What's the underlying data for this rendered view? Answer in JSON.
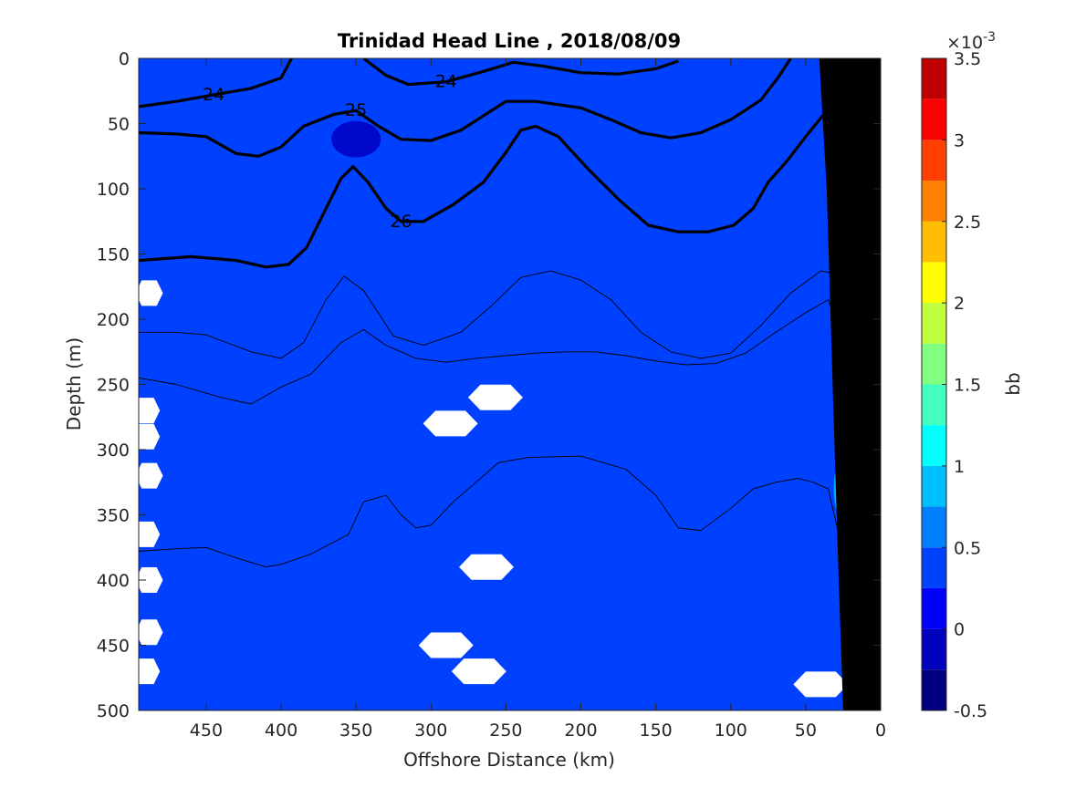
{
  "chart_data": {
    "type": "contour",
    "title": "Trinidad Head Line , 2018/08/09",
    "xlabel": "Offshore Distance (km)",
    "ylabel": "Depth (m)",
    "xlim": [
      495,
      0
    ],
    "ylim": [
      0,
      500
    ],
    "x_reversed": true,
    "y_reversed": true,
    "xticks": [
      450,
      400,
      350,
      300,
      250,
      200,
      150,
      100,
      50,
      0
    ],
    "yticks": [
      0,
      50,
      100,
      150,
      200,
      250,
      300,
      350,
      400,
      450,
      500
    ],
    "grid": false,
    "background_value": 0.25,
    "colorbar": {
      "label": "bb",
      "exponent_label": "×10",
      "exponent": "-3",
      "range": [
        -0.5,
        3.5
      ],
      "levels": [
        -0.5,
        -0.25,
        0,
        0.25,
        0.5,
        0.75,
        1,
        1.25,
        1.5,
        1.75,
        2,
        2.25,
        2.5,
        2.75,
        3,
        3.25,
        3.5
      ],
      "colors": [
        "#000080",
        "#0000BF",
        "#0000FF",
        "#0040FF",
        "#0080FF",
        "#00BFFF",
        "#00FFFF",
        "#40FFBF",
        "#80FF80",
        "#BFFF40",
        "#FFFF00",
        "#FFBF00",
        "#FF8000",
        "#FF4000",
        "#FF0000",
        "#BF0000"
      ],
      "ticks": [
        "-0.5",
        "0",
        "0.5",
        "1",
        "1.5",
        "2",
        "2.5",
        "3",
        "3.5"
      ],
      "tick_values": [
        -0.5,
        0,
        0.5,
        1,
        1.5,
        2,
        2.5,
        3,
        3.5
      ]
    },
    "density_contours": [
      {
        "label": "24",
        "bold": true,
        "points": [
          [
            495,
            37
          ],
          [
            470,
            33
          ],
          [
            445,
            28
          ],
          [
            420,
            23
          ],
          [
            400,
            15
          ],
          [
            393,
            0
          ]
        ]
      },
      {
        "label": "24",
        "bold": true,
        "points": [
          [
            345,
            0
          ],
          [
            330,
            13
          ],
          [
            315,
            20
          ],
          [
            290,
            18
          ],
          [
            265,
            10
          ],
          [
            245,
            3
          ],
          [
            225,
            6
          ],
          [
            200,
            11
          ],
          [
            175,
            12
          ],
          [
            150,
            8
          ],
          [
            135,
            2
          ]
        ]
      },
      {
        "label": "25",
        "bold": true,
        "points": [
          [
            495,
            57
          ],
          [
            470,
            58
          ],
          [
            450,
            60
          ],
          [
            430,
            73
          ],
          [
            415,
            75
          ],
          [
            400,
            68
          ],
          [
            385,
            52
          ],
          [
            365,
            43
          ],
          [
            350,
            40
          ],
          [
            335,
            52
          ],
          [
            320,
            62
          ],
          [
            300,
            63
          ],
          [
            280,
            55
          ],
          [
            265,
            44
          ],
          [
            250,
            33
          ],
          [
            230,
            33
          ],
          [
            200,
            38
          ],
          [
            180,
            47
          ],
          [
            160,
            57
          ],
          [
            140,
            61
          ],
          [
            120,
            57
          ],
          [
            100,
            47
          ],
          [
            80,
            32
          ],
          [
            68,
            14
          ],
          [
            60,
            0
          ]
        ]
      },
      {
        "label": "26",
        "bold": true,
        "points": [
          [
            495,
            155
          ],
          [
            460,
            152
          ],
          [
            430,
            155
          ],
          [
            410,
            160
          ],
          [
            395,
            158
          ],
          [
            383,
            145
          ],
          [
            370,
            115
          ],
          [
            360,
            92
          ],
          [
            352,
            83
          ],
          [
            342,
            95
          ],
          [
            330,
            115
          ],
          [
            320,
            125
          ],
          [
            305,
            125
          ],
          [
            285,
            112
          ],
          [
            265,
            95
          ],
          [
            250,
            72
          ],
          [
            240,
            55
          ],
          [
            230,
            52
          ],
          [
            215,
            60
          ],
          [
            195,
            85
          ],
          [
            175,
            108
          ],
          [
            155,
            128
          ],
          [
            135,
            133
          ],
          [
            115,
            133
          ],
          [
            98,
            128
          ],
          [
            85,
            115
          ],
          [
            75,
            95
          ],
          [
            62,
            78
          ],
          [
            50,
            60
          ],
          [
            38,
            43
          ],
          [
            28,
            20
          ],
          [
            22,
            15
          ],
          [
            15,
            15
          ]
        ]
      },
      {
        "label": "",
        "bold": false,
        "points": [
          [
            495,
            210
          ],
          [
            470,
            210
          ],
          [
            450,
            212
          ],
          [
            420,
            225
          ],
          [
            400,
            230
          ],
          [
            385,
            218
          ],
          [
            370,
            185
          ],
          [
            358,
            167
          ],
          [
            345,
            178
          ],
          [
            325,
            213
          ],
          [
            305,
            220
          ],
          [
            280,
            210
          ],
          [
            260,
            190
          ],
          [
            240,
            168
          ],
          [
            220,
            163
          ],
          [
            200,
            170
          ],
          [
            180,
            185
          ],
          [
            160,
            210
          ],
          [
            140,
            225
          ],
          [
            120,
            230
          ],
          [
            100,
            226
          ],
          [
            80,
            205
          ],
          [
            60,
            180
          ],
          [
            40,
            163
          ],
          [
            30,
            165
          ],
          [
            25,
            200
          ]
        ]
      },
      {
        "label": "",
        "bold": false,
        "points": [
          [
            495,
            245
          ],
          [
            470,
            250
          ],
          [
            440,
            260
          ],
          [
            420,
            265
          ],
          [
            400,
            252
          ],
          [
            380,
            242
          ],
          [
            360,
            218
          ],
          [
            345,
            208
          ],
          [
            330,
            220
          ],
          [
            310,
            230
          ],
          [
            290,
            233
          ],
          [
            270,
            230
          ],
          [
            250,
            228
          ],
          [
            230,
            226
          ],
          [
            210,
            225
          ],
          [
            190,
            225
          ],
          [
            170,
            228
          ],
          [
            150,
            232
          ],
          [
            130,
            235
          ],
          [
            110,
            234
          ],
          [
            90,
            226
          ],
          [
            70,
            210
          ],
          [
            50,
            195
          ],
          [
            35,
            185
          ],
          [
            27,
            210
          ]
        ]
      },
      {
        "label": "",
        "bold": false,
        "points": [
          [
            495,
            378
          ],
          [
            470,
            376
          ],
          [
            450,
            375
          ],
          [
            430,
            383
          ],
          [
            410,
            390
          ],
          [
            400,
            388
          ],
          [
            380,
            380
          ],
          [
            355,
            365
          ],
          [
            345,
            340
          ],
          [
            330,
            335
          ],
          [
            320,
            350
          ],
          [
            310,
            360
          ],
          [
            300,
            358
          ],
          [
            285,
            340
          ],
          [
            270,
            325
          ],
          [
            255,
            310
          ],
          [
            235,
            306
          ],
          [
            200,
            305
          ],
          [
            170,
            315
          ],
          [
            150,
            335
          ],
          [
            135,
            360
          ],
          [
            120,
            362
          ],
          [
            100,
            345
          ],
          [
            85,
            330
          ],
          [
            70,
            325
          ],
          [
            55,
            322
          ],
          [
            45,
            325
          ],
          [
            35,
            330
          ],
          [
            27,
            370
          ]
        ]
      }
    ],
    "white_no_data_regions": [
      {
        "at_km": 257,
        "at_depth_m": 260
      },
      {
        "at_km": 287,
        "at_depth_m": 280
      },
      {
        "at_km": 263,
        "at_depth_m": 390
      },
      {
        "at_km": 290,
        "at_depth_m": 450
      },
      {
        "at_km": 268,
        "at_depth_m": 470
      },
      {
        "at_km": 40,
        "at_depth_m": 480
      },
      {
        "at_km": 488,
        "at_depth_m": 180
      },
      {
        "at_km": 490,
        "at_depth_m": 270
      },
      {
        "at_km": 490,
        "at_depth_m": 290
      },
      {
        "at_km": 488,
        "at_depth_m": 320
      },
      {
        "at_km": 490,
        "at_depth_m": 365
      },
      {
        "at_km": 488,
        "at_depth_m": 400
      },
      {
        "at_km": 488,
        "at_depth_m": 440
      },
      {
        "at_km": 490,
        "at_depth_m": 470
      }
    ],
    "seafloor_bathymetry": [
      [
        0,
        0
      ],
      [
        0,
        500
      ],
      [
        25,
        500
      ],
      [
        28,
        400
      ],
      [
        32,
        250
      ],
      [
        36,
        100
      ],
      [
        41,
        0
      ]
    ],
    "anomaly_patches": [
      {
        "note": "low",
        "at_km": 350,
        "at_depth_m": 62,
        "value": -0.05
      },
      {
        "note": "nearshore high",
        "at_km": 27,
        "at_depth_m": 330,
        "value": 0.9
      },
      {
        "note": "nearshore high",
        "at_km": 27,
        "at_depth_m": 260,
        "value": 1.0
      }
    ]
  }
}
